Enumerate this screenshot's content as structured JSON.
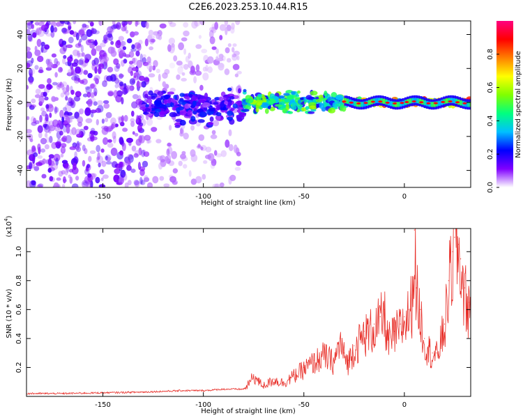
{
  "figure": {
    "title": "C2E6.2023.253.10.44.R15"
  },
  "chart_data": [
    {
      "type": "heatmap",
      "title": "C2E6.2023.253.10.44.R15",
      "xlabel": "Height of straight line (km)",
      "ylabel": "Frequency (Hz)",
      "xlim": [
        -188,
        33
      ],
      "ylim": [
        -50,
        48
      ],
      "x_ticks": [
        -150,
        -100,
        -50,
        0
      ],
      "x_tick_labels": [
        "-150",
        "-100",
        "-50",
        "0"
      ],
      "y_ticks": [
        -40,
        -20,
        0,
        20,
        40
      ],
      "y_tick_labels": [
        "-40",
        "-20",
        "0",
        "20",
        "40"
      ],
      "colorbar": {
        "label": "Normalized spectral amplitude",
        "range": [
          0,
          1
        ],
        "ticks": [
          0.0,
          0.2,
          0.4,
          0.6,
          0.8
        ],
        "tick_labels": [
          "0.0",
          "0.2",
          "0.4",
          "0.6",
          "0.8"
        ],
        "colormap": [
          "#ffffff",
          "#8000ff",
          "#0000ff",
          "#00c0ff",
          "#00ff80",
          "#80ff00",
          "#ffff00",
          "#ff8000",
          "#ff0000",
          "#ff0080"
        ]
      },
      "features": [
        {
          "name": "diffuse noise",
          "x_range": [
            -188,
            -128
          ],
          "freq_range": [
            -50,
            48
          ],
          "amplitude": 0.1
        },
        {
          "name": "diffuse noise",
          "x_range": [
            -128,
            -82
          ],
          "freq_range": [
            -50,
            48
          ],
          "amplitude": 0.05
        },
        {
          "name": "signal trace",
          "x_range": [
            -130,
            -80
          ],
          "freq_range": [
            -15,
            10
          ],
          "amplitude": 0.15
        },
        {
          "name": "signal trace",
          "x_range": [
            -80,
            -30
          ],
          "freq_range": [
            -8,
            8
          ],
          "amplitude": 0.35
        },
        {
          "name": "signal trace",
          "x_range": [
            -30,
            33
          ],
          "freq_range": [
            -3,
            3
          ],
          "amplitude": 0.9
        }
      ]
    },
    {
      "type": "line",
      "xlabel": "Height of straight line (km)",
      "ylabel": "SNR (10 * v/v)",
      "y_multiplier": "(x10",
      "y_multiplier_exp": "4",
      "y_multiplier_close": ")",
      "xlim": [
        -188,
        33
      ],
      "ylim": [
        0,
        1.16
      ],
      "x_ticks": [
        -150,
        -100,
        -50,
        0
      ],
      "x_tick_labels": [
        "-150",
        "-100",
        "-50",
        "0"
      ],
      "y_ticks": [
        0.2,
        0.4,
        0.6,
        0.8,
        1.0
      ],
      "y_tick_labels": [
        "0.2",
        "0.4",
        "0.6",
        "0.8",
        "1.0"
      ],
      "series": [
        {
          "color": "#e8302a",
          "x": [
            -188,
            -170,
            -150,
            -130,
            -110,
            -100,
            -90,
            -80,
            -78,
            -75,
            -72,
            -70,
            -65,
            -60,
            -55,
            -50,
            -45,
            -40,
            -35,
            -32,
            -30,
            -28,
            -25,
            -20,
            -15,
            -12,
            -10,
            -8,
            -5,
            -2,
            0,
            2,
            4,
            5,
            6,
            8,
            10,
            12,
            14,
            16,
            18,
            20,
            22,
            24,
            25,
            26,
            27,
            28,
            30,
            32,
            33
          ],
          "y": [
            0.02,
            0.02,
            0.025,
            0.03,
            0.04,
            0.04,
            0.05,
            0.05,
            0.08,
            0.15,
            0.1,
            0.08,
            0.12,
            0.1,
            0.15,
            0.2,
            0.25,
            0.3,
            0.25,
            0.4,
            0.3,
            0.25,
            0.35,
            0.45,
            0.5,
            0.55,
            0.6,
            0.4,
            0.45,
            0.5,
            0.55,
            0.6,
            0.7,
            1.15,
            0.75,
            0.6,
            0.4,
            0.35,
            0.3,
            0.3,
            0.4,
            0.5,
            0.8,
            1.0,
            1.1,
            1.15,
            1.05,
            0.95,
            0.75,
            0.65,
            0.62
          ]
        }
      ]
    }
  ]
}
